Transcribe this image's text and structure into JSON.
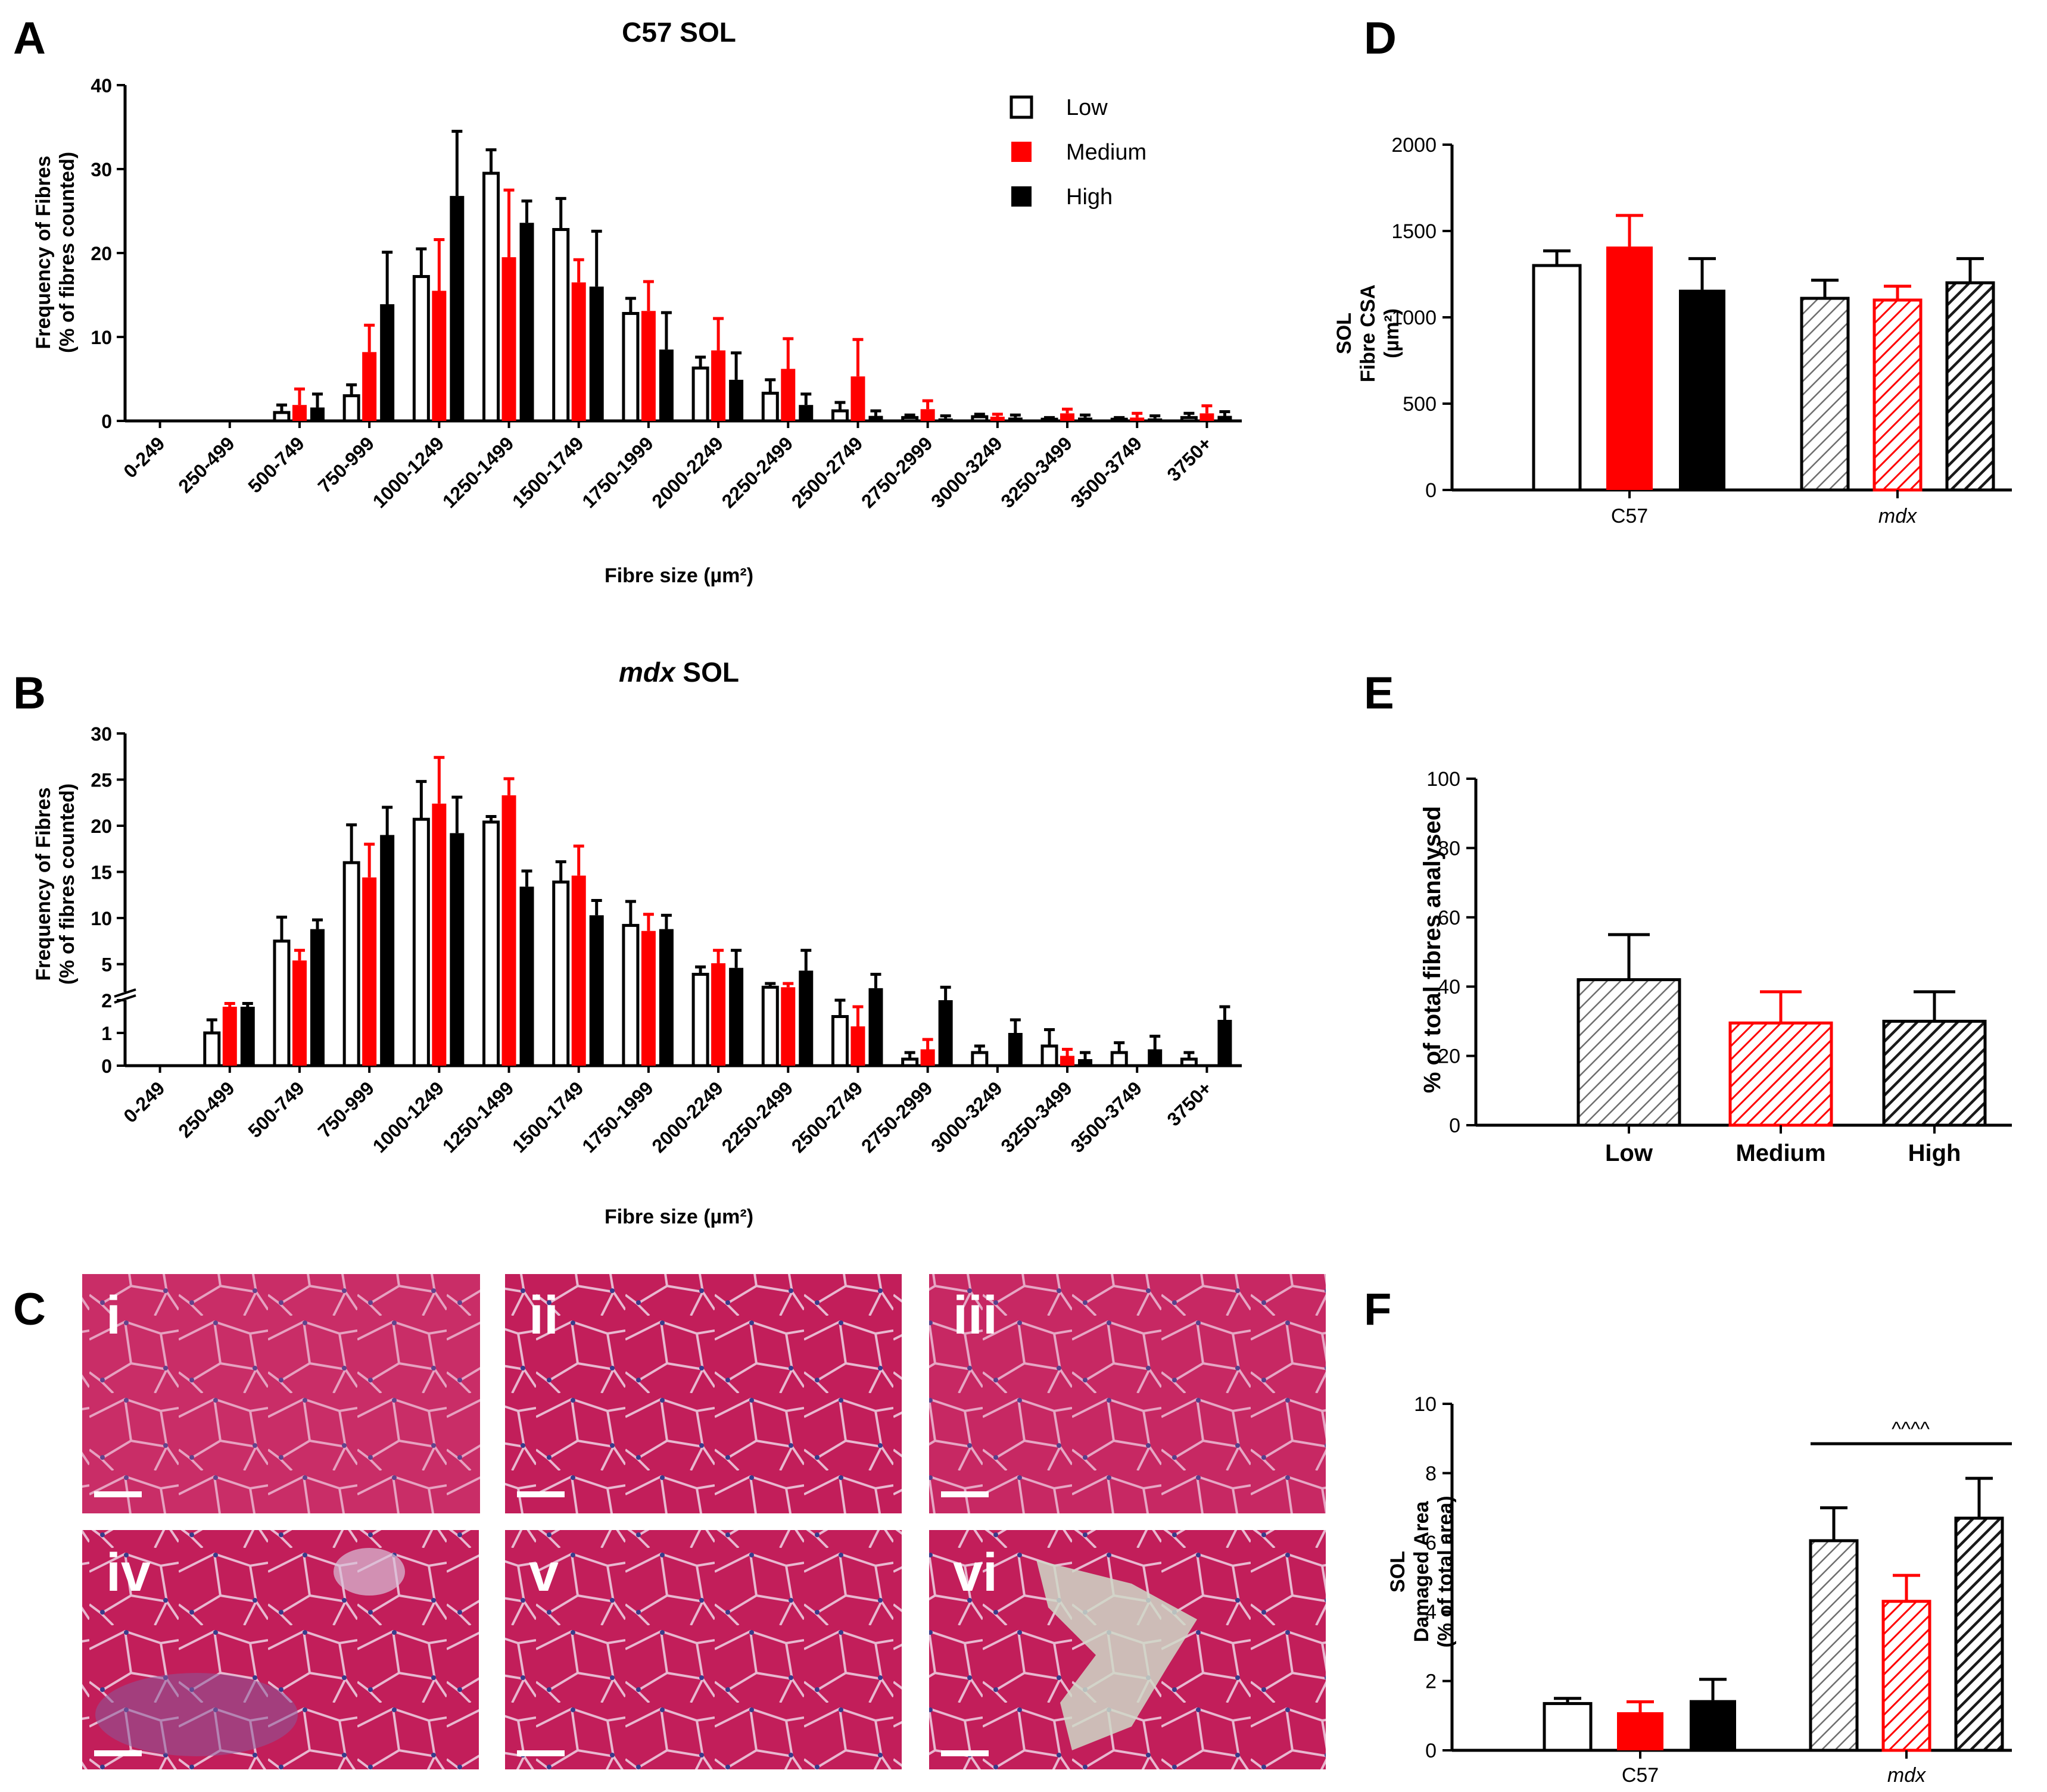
{
  "colors": {
    "low": "#ffffff",
    "medium": "#ff0000",
    "high": "#000000",
    "tissue": "#c8245e",
    "tissue_light": "#d94a80"
  },
  "legend": {
    "low": "Low",
    "medium": "Medium",
    "high": "High"
  },
  "panels": {
    "A": {
      "label": "A",
      "title": "C57 SOL",
      "ylabel1": "Frequency of Fibres",
      "ylabel2": "(% of fibres counted)",
      "xlabel": "Fibre size (µm²)"
    },
    "B": {
      "label": "B",
      "title_italic": "mdx",
      "title_rest": " SOL",
      "ylabel1": "Frequency of Fibres",
      "ylabel2": "(% of fibres counted)",
      "xlabel": "Fibre size (µm²)"
    },
    "C": {
      "label": "C",
      "images": [
        "i",
        "ii",
        "iii",
        "iv",
        "v",
        "vi"
      ]
    },
    "D": {
      "label": "D",
      "ylabel1": "SOL",
      "ylabel2": "Fibre CSA",
      "ylabel3": "(µm²)"
    },
    "E": {
      "label": "E",
      "ylabel": "% of total fibres analysed"
    },
    "F": {
      "label": "F",
      "ylabel1": "SOL",
      "ylabel2": "Damaged Area",
      "ylabel3": "(% of total area)",
      "significance": "^^^^"
    }
  },
  "chart_data": [
    {
      "id": "A",
      "type": "bar",
      "title": "C57 SOL",
      "xlabel": "Fibre size (µm²)",
      "ylabel": "Frequency of Fibres (% of fibres counted)",
      "ylim": [
        0,
        40
      ],
      "yticks": [
        0,
        10,
        20,
        30,
        40
      ],
      "categories": [
        "0-249",
        "250-499",
        "500-749",
        "750-999",
        "1000-1249",
        "1250-1499",
        "1500-1749",
        "1750-1999",
        "2000-2249",
        "2250-2499",
        "2500-2749",
        "2750-2999",
        "3000-3249",
        "3250-3499",
        "3500-3749",
        "3750+"
      ],
      "series": [
        {
          "name": "Low",
          "values": [
            0,
            0,
            1.0,
            3.0,
            17.2,
            29.5,
            22.8,
            12.8,
            6.3,
            3.3,
            1.2,
            0.4,
            0.5,
            0.2,
            0.2,
            0.4
          ],
          "errors": [
            0,
            0,
            0.9,
            1.3,
            3.3,
            2.8,
            3.7,
            1.8,
            1.3,
            1.6,
            1.0,
            0.3,
            0.3,
            0.2,
            0.2,
            0.5
          ]
        },
        {
          "name": "Medium",
          "values": [
            0,
            0,
            1.9,
            8.2,
            15.5,
            19.5,
            16.5,
            13.1,
            8.4,
            6.2,
            5.3,
            1.4,
            0.5,
            0.9,
            0.4,
            0.9
          ],
          "errors": [
            0,
            0,
            1.9,
            3.2,
            6.1,
            8.0,
            2.7,
            3.5,
            3.8,
            3.6,
            4.4,
            1.0,
            0.3,
            0.5,
            0.5,
            0.9
          ]
        },
        {
          "name": "High",
          "values": [
            0,
            0,
            1.6,
            13.9,
            26.8,
            23.6,
            16.0,
            8.5,
            4.9,
            1.9,
            0.6,
            0.3,
            0.4,
            0.4,
            0.3,
            0.6
          ],
          "errors": [
            0,
            0,
            1.6,
            6.2,
            7.7,
            2.6,
            6.6,
            4.4,
            3.2,
            1.3,
            0.6,
            0.3,
            0.3,
            0.3,
            0.3,
            0.5
          ]
        }
      ]
    },
    {
      "id": "B",
      "type": "bar",
      "title": "mdx SOL",
      "xlabel": "Fibre size (µm²)",
      "ylabel": "Frequency of Fibres (% of fibres counted)",
      "ylim": [
        0,
        30
      ],
      "axis_break": 2,
      "yticks": [
        0,
        1,
        2,
        5,
        10,
        15,
        20,
        25,
        30
      ],
      "categories": [
        "0-249",
        "250-499",
        "500-749",
        "750-999",
        "1000-1249",
        "1250-1499",
        "1500-1749",
        "1750-1999",
        "2000-2249",
        "2250-2499",
        "2500-2749",
        "2750-2999",
        "3000-3249",
        "3250-3499",
        "3500-3749",
        "3750+"
      ],
      "series": [
        {
          "name": "Low",
          "values": [
            0,
            1.0,
            7.5,
            16.0,
            20.7,
            20.4,
            13.9,
            9.2,
            3.9,
            2.5,
            1.5,
            0.2,
            0.4,
            0.6,
            0.4,
            0.2
          ],
          "errors": [
            0,
            0.4,
            2.6,
            4.1,
            4.1,
            0.6,
            2.2,
            2.6,
            0.8,
            0.4,
            0.5,
            0.2,
            0.2,
            0.5,
            0.3,
            0.2
          ]
        },
        {
          "name": "Medium",
          "values": [
            0,
            1.8,
            5.4,
            14.4,
            22.4,
            23.3,
            14.6,
            8.6,
            5.1,
            2.5,
            1.2,
            0.5,
            0,
            0.3,
            0,
            0
          ],
          "errors": [
            0,
            0.1,
            1.1,
            3.6,
            5.0,
            1.8,
            3.2,
            1.8,
            1.4,
            0.4,
            0.6,
            0.3,
            0,
            0.2,
            0,
            0
          ]
        },
        {
          "name": "High",
          "values": [
            0,
            1.8,
            8.8,
            19.0,
            19.2,
            13.4,
            10.3,
            8.8,
            4.6,
            4.3,
            2.4,
            2.0,
            1.0,
            0.2,
            0.5,
            1.4
          ],
          "errors": [
            0,
            0.1,
            1.0,
            3.0,
            3.9,
            1.7,
            1.6,
            1.5,
            1.9,
            2.2,
            1.5,
            0.5,
            0.4,
            0.2,
            0.4,
            0.4
          ]
        }
      ]
    },
    {
      "id": "D",
      "type": "bar",
      "ylabel": "SOL Fibre CSA (µm²)",
      "ylim": [
        0,
        2000
      ],
      "yticks": [
        0,
        500,
        1000,
        1500,
        2000
      ],
      "groups": [
        "C57",
        "mdx"
      ],
      "series": [
        {
          "name": "Low",
          "values": [
            1300,
            1110
          ],
          "errors": [
            85,
            105
          ]
        },
        {
          "name": "Medium",
          "values": [
            1410,
            1100
          ],
          "errors": [
            180,
            80
          ]
        },
        {
          "name": "High",
          "values": [
            1160,
            1200
          ],
          "errors": [
            180,
            140
          ]
        }
      ]
    },
    {
      "id": "E",
      "type": "bar",
      "ylabel": "% of total fibres analysed",
      "ylim": [
        0,
        100
      ],
      "yticks": [
        0,
        20,
        40,
        60,
        80,
        100
      ],
      "categories": [
        "Low",
        "Medium",
        "High"
      ],
      "values": [
        42,
        29.5,
        30
      ],
      "errors": [
        13,
        9,
        8.5
      ]
    },
    {
      "id": "F",
      "type": "bar",
      "ylabel": "SOL Damaged Area (% of total area)",
      "ylim": [
        0,
        10
      ],
      "yticks": [
        0,
        2,
        4,
        6,
        8,
        10
      ],
      "groups": [
        "C57",
        "mdx"
      ],
      "series": [
        {
          "name": "Low",
          "values": [
            1.35,
            6.05
          ],
          "errors": [
            0.15,
            0.95
          ]
        },
        {
          "name": "Medium",
          "values": [
            1.1,
            4.3
          ],
          "errors": [
            0.3,
            0.75
          ]
        },
        {
          "name": "High",
          "values": [
            1.45,
            6.7
          ],
          "errors": [
            0.6,
            1.15
          ]
        }
      ],
      "annotations": [
        "^^^^"
      ]
    }
  ]
}
